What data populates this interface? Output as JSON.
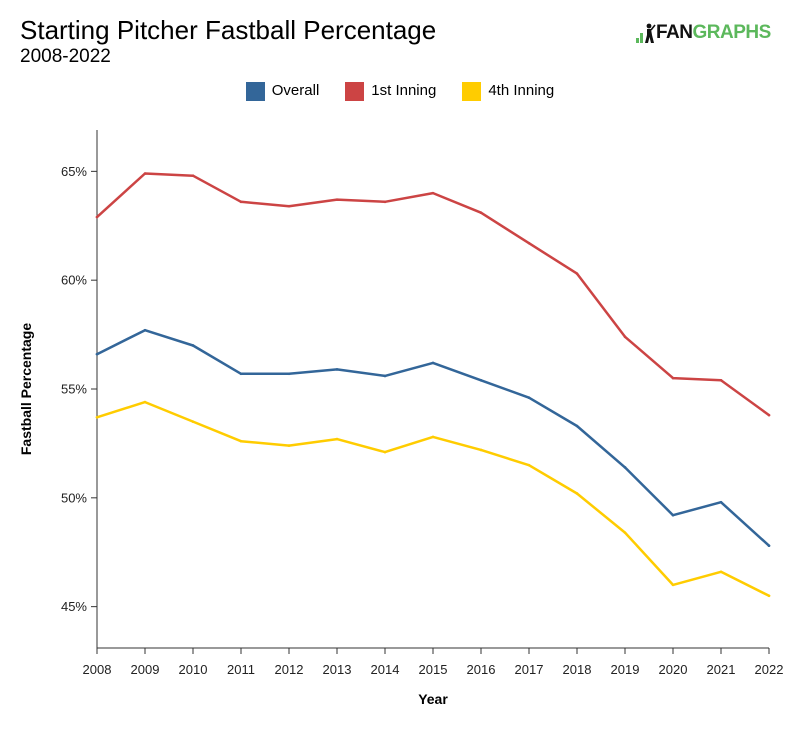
{
  "header": {
    "title": "Starting Pitcher Fastball Percentage",
    "subtitle": "2008-2022",
    "brand_fan": "FAN",
    "brand_graphs": "GRAPHS"
  },
  "colors": {
    "overall": "#336699",
    "first_inning": "#cc4444",
    "fourth_inning": "#ffcc00",
    "axis": "#333333"
  },
  "legend": {
    "items": [
      {
        "label": "Overall",
        "color": "#336699"
      },
      {
        "label": "1st Inning",
        "color": "#cc4444"
      },
      {
        "label": "4th Inning",
        "color": "#ffcc00"
      }
    ]
  },
  "chart_data": {
    "type": "line",
    "title": "Starting Pitcher Fastball Percentage",
    "subtitle": "2008-2022",
    "xlabel": "Year",
    "ylabel": "Fastball Percentage",
    "x": [
      2008,
      2009,
      2010,
      2011,
      2012,
      2013,
      2014,
      2015,
      2016,
      2017,
      2018,
      2019,
      2020,
      2021,
      2022
    ],
    "ylim": [
      43.1,
      66.9
    ],
    "yticks": [
      45,
      50,
      55,
      60,
      65
    ],
    "ytick_labels": [
      "45%",
      "50%",
      "55%",
      "60%",
      "65%"
    ],
    "xtick_labels": [
      "2008",
      "2009",
      "2010",
      "2011",
      "2012",
      "2013",
      "2014",
      "2015",
      "2016",
      "2017",
      "2018",
      "2019",
      "2020",
      "2021",
      "2022"
    ],
    "grid": false,
    "legend_position": "top-center",
    "series": [
      {
        "name": "Overall",
        "color": "#336699",
        "values": [
          56.6,
          57.7,
          57.0,
          55.7,
          55.7,
          55.9,
          55.6,
          56.2,
          55.4,
          54.6,
          53.3,
          51.4,
          49.2,
          49.8,
          47.8
        ]
      },
      {
        "name": "1st Inning",
        "color": "#cc4444",
        "values": [
          62.9,
          64.9,
          64.8,
          63.6,
          63.4,
          63.7,
          63.6,
          64.0,
          63.1,
          61.7,
          60.3,
          57.4,
          55.5,
          55.4,
          53.8
        ]
      },
      {
        "name": "4th Inning",
        "color": "#ffcc00",
        "values": [
          53.7,
          54.4,
          53.5,
          52.6,
          52.4,
          52.7,
          52.1,
          52.8,
          52.2,
          51.5,
          50.2,
          48.4,
          46.0,
          46.6,
          45.5
        ]
      }
    ]
  }
}
